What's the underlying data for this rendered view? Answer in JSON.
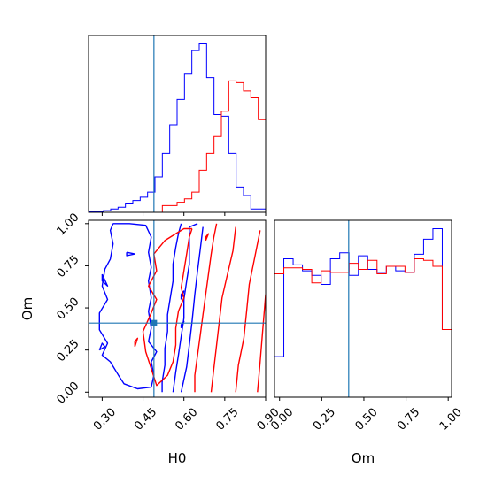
{
  "chart_data": {
    "type": "corner",
    "parameters": [
      "H0",
      "Om"
    ],
    "colors": {
      "blue": "#0000ff",
      "red": "#ff0000",
      "truth": "#1f77b4"
    },
    "truth": {
      "H0": 0.49,
      "Om": 0.41
    },
    "panels": [
      {
        "id": "H0-marginal",
        "type": "histogram",
        "xlabel": "",
        "xlim": [
          0.25,
          0.9
        ],
        "xticks": [
          0.3,
          0.45,
          0.6,
          0.75,
          0.9
        ],
        "bins": 24,
        "series": [
          {
            "color": "blue",
            "counts": [
              0.3,
              0.3,
              1,
              2,
              3,
              5,
              7,
              9,
              12,
              21,
              35,
              52,
              67,
              82,
              96,
              100,
              80,
              58,
              57,
              35,
              15,
              10,
              2,
              2
            ]
          },
          {
            "color": "red",
            "counts": [
              0,
              0,
              0,
              0,
              0,
              0,
              0,
              0,
              0,
              0,
              4,
              4,
              6,
              8,
              12,
              25,
              35,
              45,
              60,
              78,
              77,
              72,
              68,
              55
            ]
          }
        ]
      },
      {
        "id": "Om-marginal",
        "type": "histogram",
        "xlabel": "Om",
        "xlim": [
          -0.03,
          1.02
        ],
        "xticks": [
          0.0,
          0.25,
          0.5,
          0.75,
          1.0
        ],
        "xtick_labels": [
          "0.00",
          "0.25",
          "0.50",
          "0.75",
          "1.00"
        ],
        "bins": 19,
        "series": [
          {
            "color": "blue",
            "counts": [
              0.27,
              0.92,
              0.88,
              0.84,
              0.81,
              0.75,
              0.92,
              0.96,
              0.81,
              0.94,
              0.85,
              0.83,
              0.87,
              0.84,
              0.83,
              0.95,
              1.05,
              1.12,
              0.45
            ]
          },
          {
            "color": "red",
            "counts": [
              0.82,
              0.86,
              0.86,
              0.85,
              0.76,
              0.84,
              0.83,
              0.83,
              0.89,
              0.85,
              0.91,
              0.82,
              0.87,
              0.87,
              0.83,
              0.92,
              0.91,
              0.87,
              0.45
            ]
          }
        ]
      },
      {
        "id": "joint",
        "type": "contour",
        "xlabel": "H0",
        "ylabel": "Om",
        "xlim": [
          0.25,
          0.9
        ],
        "ylim": [
          -0.03,
          1.02
        ],
        "xticks": [
          0.3,
          0.45,
          0.6,
          0.75,
          0.9
        ],
        "xtick_labels": [
          "0.30",
          "0.45",
          "0.60",
          "0.75",
          "0.90"
        ],
        "yticks": [
          0.0,
          0.25,
          0.5,
          0.75,
          1.0
        ],
        "ytick_labels": [
          "0.00",
          "0.25",
          "0.50",
          "0.75",
          "1.00"
        ],
        "contours": [
          {
            "color": "blue",
            "points": [
              [
                0.34,
                1.0
              ],
              [
                0.33,
                0.96
              ],
              [
                0.34,
                0.88
              ],
              [
                0.33,
                0.79
              ],
              [
                0.31,
                0.73
              ],
              [
                0.3,
                0.63
              ],
              [
                0.32,
                0.55
              ],
              [
                0.29,
                0.47
              ],
              [
                0.29,
                0.37
              ],
              [
                0.32,
                0.29
              ],
              [
                0.3,
                0.22
              ],
              [
                0.33,
                0.18
              ],
              [
                0.36,
                0.1
              ],
              [
                0.38,
                0.05
              ],
              [
                0.43,
                0.02
              ],
              [
                0.48,
                0.03
              ],
              [
                0.49,
                0.1
              ],
              [
                0.48,
                0.18
              ],
              [
                0.5,
                0.24
              ],
              [
                0.47,
                0.3
              ],
              [
                0.48,
                0.38
              ],
              [
                0.47,
                0.48
              ],
              [
                0.48,
                0.56
              ],
              [
                0.47,
                0.66
              ],
              [
                0.48,
                0.74
              ],
              [
                0.47,
                0.83
              ],
              [
                0.48,
                0.92
              ],
              [
                0.46,
                0.99
              ],
              [
                0.4,
                1.0
              ],
              [
                0.34,
                1.0
              ]
            ]
          },
          {
            "color": "blue",
            "points": [
              [
                0.59,
                1.0
              ],
              [
                0.58,
                0.94
              ],
              [
                0.57,
                0.86
              ],
              [
                0.56,
                0.76
              ],
              [
                0.56,
                0.66
              ],
              [
                0.55,
                0.56
              ],
              [
                0.54,
                0.46
              ],
              [
                0.54,
                0.36
              ],
              [
                0.53,
                0.26
              ],
              [
                0.53,
                0.16
              ],
              [
                0.52,
                0.06
              ],
              [
                0.52,
                0.0
              ]
            ]
          },
          {
            "color": "blue",
            "points": [
              [
                0.56,
                0.0
              ],
              [
                0.57,
                0.12
              ],
              [
                0.58,
                0.22
              ],
              [
                0.59,
                0.33
              ],
              [
                0.6,
                0.44
              ],
              [
                0.6,
                0.55
              ],
              [
                0.61,
                0.66
              ],
              [
                0.62,
                0.76
              ],
              [
                0.62,
                0.86
              ],
              [
                0.62,
                0.98
              ],
              [
                0.65,
                1.0
              ]
            ]
          },
          {
            "color": "blue",
            "points": [
              [
                0.59,
                0.0
              ],
              [
                0.61,
                0.15
              ],
              [
                0.62,
                0.28
              ],
              [
                0.63,
                0.42
              ],
              [
                0.64,
                0.58
              ],
              [
                0.65,
                0.72
              ],
              [
                0.66,
                0.85
              ],
              [
                0.67,
                0.98
              ]
            ]
          },
          {
            "color": "blue",
            "points": [
              [
                0.3,
                0.7
              ],
              [
                0.32,
                0.63
              ],
              [
                0.3,
                0.66
              ],
              [
                0.3,
                0.7
              ]
            ]
          },
          {
            "color": "blue",
            "points": [
              [
                0.29,
                0.25
              ],
              [
                0.3,
                0.29
              ],
              [
                0.31,
                0.27
              ],
              [
                0.29,
                0.25
              ]
            ]
          },
          {
            "color": "blue",
            "points": [
              [
                0.39,
                0.83
              ],
              [
                0.42,
                0.82
              ],
              [
                0.39,
                0.81
              ],
              [
                0.39,
                0.83
              ]
            ]
          },
          {
            "color": "blue",
            "points": [
              [
                0.59,
                0.38
              ],
              [
                0.6,
                0.42
              ],
              [
                0.59,
                0.4
              ],
              [
                0.59,
                0.38
              ]
            ]
          },
          {
            "color": "blue",
            "points": [
              [
                0.59,
                0.55
              ],
              [
                0.6,
                0.6
              ],
              [
                0.59,
                0.58
              ],
              [
                0.59,
                0.55
              ]
            ]
          },
          {
            "color": "red",
            "points": [
              [
                0.63,
                0.97
              ],
              [
                0.62,
                0.92
              ],
              [
                0.61,
                0.82
              ],
              [
                0.6,
                0.72
              ],
              [
                0.59,
                0.62
              ],
              [
                0.6,
                0.56
              ],
              [
                0.58,
                0.48
              ],
              [
                0.57,
                0.38
              ],
              [
                0.57,
                0.28
              ],
              [
                0.56,
                0.18
              ],
              [
                0.54,
                0.1
              ],
              [
                0.5,
                0.04
              ],
              [
                0.48,
                0.14
              ],
              [
                0.46,
                0.24
              ],
              [
                0.45,
                0.36
              ],
              [
                0.48,
                0.47
              ],
              [
                0.5,
                0.55
              ],
              [
                0.47,
                0.63
              ],
              [
                0.5,
                0.72
              ],
              [
                0.49,
                0.82
              ],
              [
                0.53,
                0.9
              ],
              [
                0.56,
                0.93
              ],
              [
                0.6,
                0.97
              ],
              [
                0.63,
                0.97
              ]
            ]
          },
          {
            "color": "red",
            "points": [
              [
                0.72,
                1.0
              ],
              [
                0.71,
                0.92
              ],
              [
                0.7,
                0.82
              ],
              [
                0.69,
                0.7
              ],
              [
                0.68,
                0.58
              ],
              [
                0.67,
                0.46
              ],
              [
                0.66,
                0.34
              ],
              [
                0.65,
                0.22
              ],
              [
                0.64,
                0.1
              ],
              [
                0.64,
                0.0
              ]
            ]
          },
          {
            "color": "red",
            "points": [
              [
                0.7,
                0.0
              ],
              [
                0.71,
                0.14
              ],
              [
                0.72,
                0.28
              ],
              [
                0.73,
                0.42
              ],
              [
                0.74,
                0.56
              ],
              [
                0.76,
                0.7
              ],
              [
                0.78,
                0.84
              ],
              [
                0.79,
                0.98
              ]
            ]
          },
          {
            "color": "red",
            "points": [
              [
                0.79,
                0.0
              ],
              [
                0.8,
                0.16
              ],
              [
                0.82,
                0.32
              ],
              [
                0.83,
                0.48
              ],
              [
                0.84,
                0.64
              ],
              [
                0.86,
                0.8
              ],
              [
                0.88,
                0.96
              ]
            ]
          },
          {
            "color": "red",
            "points": [
              [
                0.87,
                0.0
              ],
              [
                0.88,
                0.18
              ],
              [
                0.89,
                0.38
              ],
              [
                0.9,
                0.58
              ]
            ]
          },
          {
            "color": "red",
            "points": [
              [
                0.68,
                0.9
              ],
              [
                0.69,
                0.94
              ],
              [
                0.68,
                0.92
              ],
              [
                0.68,
                0.9
              ]
            ]
          },
          {
            "color": "red",
            "points": [
              [
                0.42,
                0.27
              ],
              [
                0.43,
                0.32
              ],
              [
                0.42,
                0.3
              ],
              [
                0.42,
                0.27
              ]
            ]
          }
        ]
      }
    ]
  }
}
